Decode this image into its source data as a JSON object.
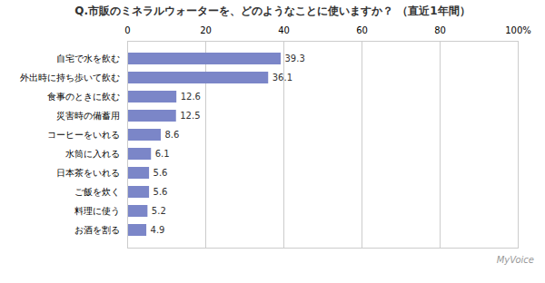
{
  "chart_data": {
    "type": "bar",
    "title": "Q.市販のミネラルウォーターを、どのようなことに使いますか？  （直近1年間）",
    "categories": [
      "自宅で水を飲む",
      "外出時に持ち歩いて飲む",
      "食事のときに飲む",
      "災害時の備蓄用",
      "コーヒーをいれる",
      "水筒に入れる",
      "日本茶をいれる",
      "ご飯を炊く",
      "料理に使う",
      "お酒を割る"
    ],
    "values": [
      39.3,
      36.1,
      12.6,
      12.5,
      8.6,
      6.1,
      5.6,
      5.6,
      5.2,
      4.9
    ],
    "color": "#7b86c8",
    "orientation": "horizontal",
    "xlim": [
      0,
      100
    ],
    "xticks": [
      0,
      20,
      40,
      60,
      80,
      {
        "value": 100,
        "label": "100%"
      }
    ],
    "grid": true,
    "data_labels": true,
    "annotations": [
      "MyVoice"
    ]
  }
}
